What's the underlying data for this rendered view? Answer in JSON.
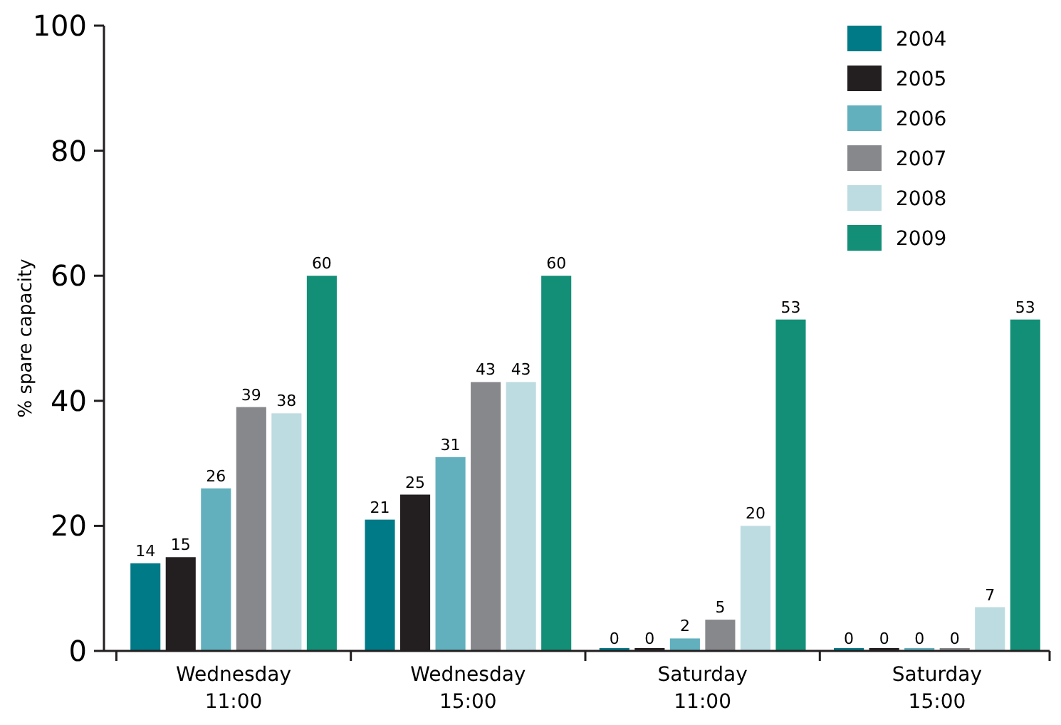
{
  "chart_data": {
    "type": "bar",
    "ylabel": "% spare capacity",
    "categories": [
      "Wednesday 11:00",
      "Wednesday 15:00",
      "Saturday 11:00",
      "Saturday 15:00"
    ],
    "series": [
      {
        "name": "2004",
        "color": "#007a87",
        "values": [
          14,
          21,
          0,
          0
        ]
      },
      {
        "name": "2005",
        "color": "#231f20",
        "values": [
          15,
          25,
          0,
          0
        ]
      },
      {
        "name": "2006",
        "color": "#62b0be",
        "values": [
          26,
          31,
          2,
          0
        ]
      },
      {
        "name": "2007",
        "color": "#87888c",
        "values": [
          39,
          43,
          5,
          0
        ]
      },
      {
        "name": "2008",
        "color": "#bcdce2",
        "values": [
          38,
          43,
          20,
          7
        ]
      },
      {
        "name": "2009",
        "color": "#138f78",
        "values": [
          60,
          60,
          53,
          53
        ]
      }
    ],
    "ylim": [
      0,
      100
    ],
    "yticks": [
      0,
      20,
      40,
      60,
      80,
      100
    ],
    "data_labels": true,
    "legend": "top right",
    "grid": false
  }
}
